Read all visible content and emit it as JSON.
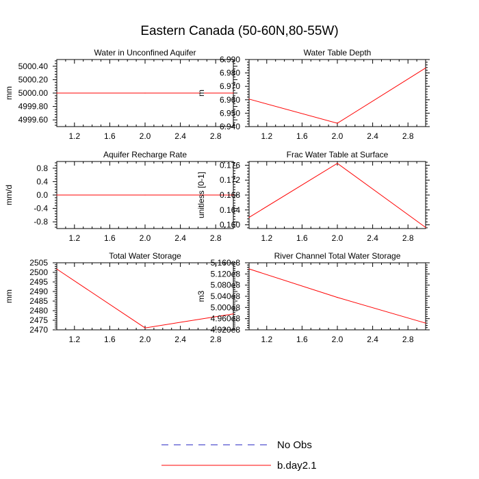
{
  "figure": {
    "title": "Eastern Canada (50-60N,80-55W)"
  },
  "colors": {
    "model_line": "#ff0000",
    "obs_line": "#2020c0",
    "axes": "#000000",
    "background": "#ffffff"
  },
  "legend": {
    "entries": [
      {
        "label": "No Obs",
        "style": "dashed",
        "color": "#2020c0"
      },
      {
        "label": "b.day2.1",
        "style": "solid",
        "color": "#ff0000"
      }
    ]
  },
  "chart_data": [
    {
      "type": "line",
      "title": "Water in Unconfined Aquifer",
      "xlabel": "",
      "ylabel": "mm",
      "xlim": [
        1.0,
        3.0
      ],
      "ylim": [
        4999.5,
        5000.5
      ],
      "xticks": [
        "1.2",
        "1.6",
        "2.0",
        "2.4",
        "2.8"
      ],
      "yticks": [
        "4999.60",
        "4999.80",
        "5000.00",
        "5000.20",
        "5000.40"
      ],
      "series": [
        {
          "name": "b.day2.1",
          "x": [
            1,
            2,
            3
          ],
          "values": [
            5000.0,
            5000.0,
            5000.0
          ]
        }
      ]
    },
    {
      "type": "line",
      "title": "Water Table Depth",
      "xlabel": "",
      "ylabel": "m",
      "xlim": [
        1.0,
        3.0
      ],
      "ylim": [
        6.94,
        6.99
      ],
      "xticks": [
        "1.2",
        "1.6",
        "2.0",
        "2.4",
        "2.8"
      ],
      "yticks": [
        "6.940",
        "6.950",
        "6.960",
        "6.970",
        "6.980",
        "6.990"
      ],
      "series": [
        {
          "name": "b.day2.1",
          "x": [
            1,
            2,
            3
          ],
          "values": [
            6.9605,
            6.9425,
            6.9837
          ]
        }
      ]
    },
    {
      "type": "line",
      "title": "Aquifer Recharge Rate",
      "xlabel": "",
      "ylabel": "mm/d",
      "xlim": [
        1.0,
        3.0
      ],
      "ylim": [
        -1.0,
        1.0
      ],
      "xticks": [
        "1.2",
        "1.6",
        "2.0",
        "2.4",
        "2.8"
      ],
      "yticks": [
        "-0.8",
        "-0.4",
        "0.0",
        "0.4",
        "0.8"
      ],
      "series": [
        {
          "name": "b.day2.1",
          "x": [
            1,
            2,
            3
          ],
          "values": [
            0.0,
            0.0,
            0.0
          ]
        }
      ]
    },
    {
      "type": "line",
      "title": "Frac Water Table at Surface",
      "xlabel": "",
      "ylabel": "unitless [0-1]",
      "xlim": [
        1.0,
        3.0
      ],
      "ylim": [
        0.159,
        0.177
      ],
      "xticks": [
        "1.2",
        "1.6",
        "2.0",
        "2.4",
        "2.8"
      ],
      "yticks": [
        "0.160",
        "0.164",
        "0.168",
        "0.172",
        "0.176"
      ],
      "series": [
        {
          "name": "b.day2.1",
          "x": [
            1,
            2,
            3
          ],
          "values": [
            0.162,
            0.1765,
            0.1593
          ]
        }
      ]
    },
    {
      "type": "line",
      "title": "Total Water Storage",
      "xlabel": "",
      "ylabel": "mm",
      "xlim": [
        1.0,
        3.0
      ],
      "ylim": [
        2470,
        2505
      ],
      "xticks": [
        "1.2",
        "1.6",
        "2.0",
        "2.4",
        "2.8"
      ],
      "yticks": [
        "2470",
        "2475",
        "2480",
        "2485",
        "2490",
        "2495",
        "2500",
        "2505"
      ],
      "series": [
        {
          "name": "b.day2.1",
          "x": [
            1,
            2,
            3
          ],
          "values": [
            2501.7,
            2471.0,
            2478.3
          ]
        }
      ]
    },
    {
      "type": "line",
      "title": "River Channel Total Water Storage",
      "xlabel": "",
      "ylabel": "m3",
      "xlim": [
        1.0,
        3.0
      ],
      "ylim": [
        492000000,
        516000000
      ],
      "xticks": [
        "1.2",
        "1.6",
        "2.0",
        "2.4",
        "2.8"
      ],
      "yticks": [
        "4.920e8",
        "4.960e8",
        "5.000e8",
        "5.040e8",
        "5.080e8",
        "5.120e8",
        "5.160e8"
      ],
      "series": [
        {
          "name": "b.day2.1",
          "x": [
            1,
            2,
            3
          ],
          "values": [
            513800000,
            503600000,
            494400000
          ]
        }
      ]
    }
  ]
}
